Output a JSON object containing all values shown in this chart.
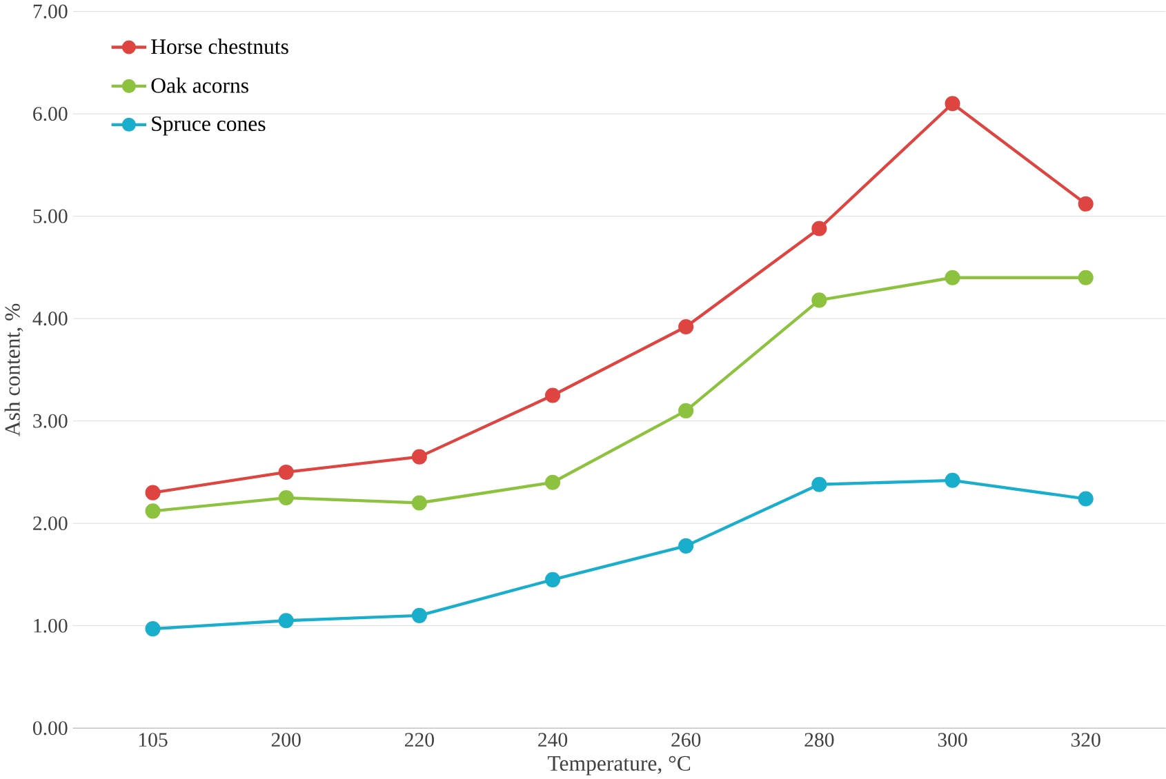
{
  "chart_data": {
    "type": "line",
    "xlabel": "Temperature, °C",
    "ylabel": "Ash content, %",
    "categories": [
      "105",
      "200",
      "220",
      "240",
      "260",
      "280",
      "300",
      "320"
    ],
    "series": [
      {
        "name": "Horse chestnuts",
        "color": "#de4440",
        "values": [
          2.3,
          2.5,
          2.65,
          3.25,
          3.92,
          4.88,
          6.1,
          5.12
        ]
      },
      {
        "name": "Oak acorns",
        "color": "#8dc23f",
        "values": [
          2.12,
          2.25,
          2.2,
          2.4,
          3.1,
          4.18,
          4.4,
          4.4
        ]
      },
      {
        "name": "Spruce cones",
        "color": "#19aecb",
        "values": [
          0.97,
          1.05,
          1.1,
          1.45,
          1.78,
          2.38,
          2.42,
          2.24
        ]
      }
    ],
    "ylim": [
      0,
      7
    ],
    "yticks": [
      {
        "value": 0,
        "label": "0.00"
      },
      {
        "value": 1,
        "label": "1.00"
      },
      {
        "value": 2,
        "label": "2.00"
      },
      {
        "value": 3,
        "label": "3.00"
      },
      {
        "value": 4,
        "label": "4.00"
      },
      {
        "value": 5,
        "label": "5.00"
      },
      {
        "value": 6,
        "label": "6.00"
      },
      {
        "value": 7,
        "label": "7.00"
      }
    ],
    "grid": "y",
    "legend": "top left",
    "marker": "circle",
    "line_style": "solid"
  }
}
